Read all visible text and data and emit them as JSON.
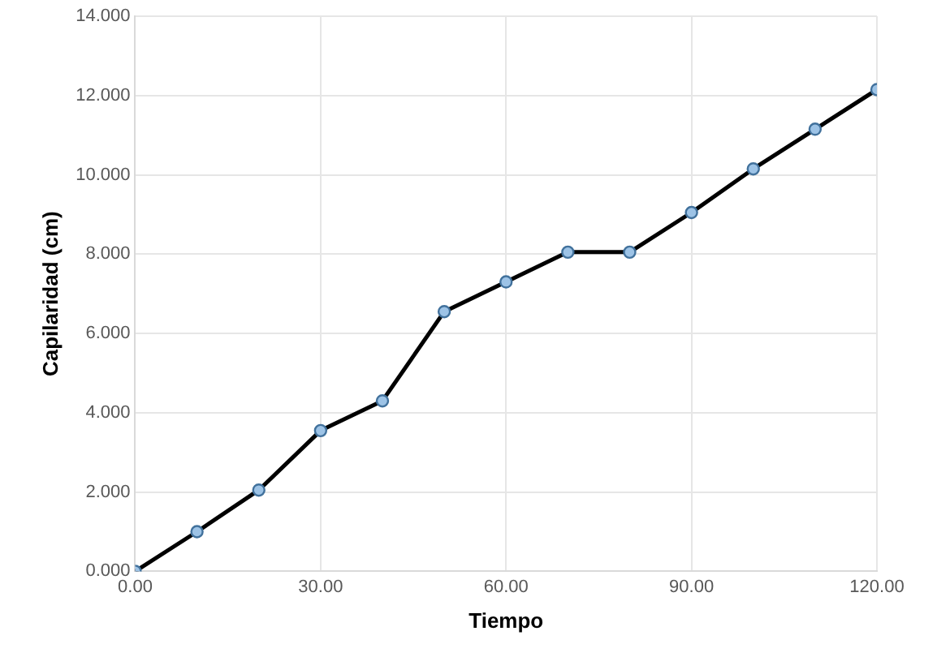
{
  "chart_data": {
    "type": "line",
    "xlabel": "Tiempo",
    "ylabel": "Capilaridad (cm)",
    "x": [
      0,
      10,
      20,
      30,
      40,
      50,
      60,
      70,
      80,
      90,
      100,
      110,
      120
    ],
    "series": [
      {
        "color": "#000000",
        "values": [
          0,
          1.0,
          2.05,
          3.55,
          4.3,
          6.55,
          7.3,
          8.05,
          8.05,
          9.05,
          10.15,
          11.15,
          12.15
        ]
      }
    ],
    "xlim": [
      0,
      120
    ],
    "xticks": [
      {
        "value": 0,
        "label": "0.00"
      },
      {
        "value": 30,
        "label": "30.00"
      },
      {
        "value": 60,
        "label": "60.00"
      },
      {
        "value": 90,
        "label": "90.00"
      },
      {
        "value": 120,
        "label": "120.00"
      }
    ],
    "ylim": [
      0,
      14
    ],
    "yticks": [
      {
        "value": 0,
        "label": "0.000"
      },
      {
        "value": 2,
        "label": "2.000"
      },
      {
        "value": 4,
        "label": "4.000"
      },
      {
        "value": 6,
        "label": "6.000"
      },
      {
        "value": 8,
        "label": "8.000"
      },
      {
        "value": 10,
        "label": "10.000"
      },
      {
        "value": 12,
        "label": "12.000"
      },
      {
        "value": 14,
        "label": "14.000"
      }
    ],
    "grid": true,
    "marker": "circle",
    "line_style": "solid"
  }
}
